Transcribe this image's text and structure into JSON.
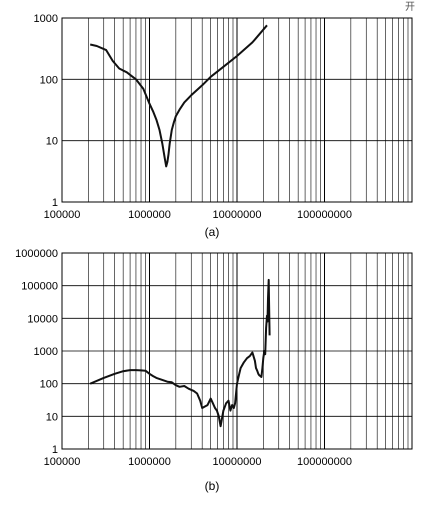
{
  "corner_text": "开",
  "chart_data": [
    {
      "type": "line",
      "panel_label": "(a)",
      "title": "",
      "xlabel": "",
      "ylabel": "",
      "xscale": "log",
      "yscale": "log",
      "xlim": [
        100000,
        1000000000
      ],
      "ylim": [
        1,
        1000
      ],
      "x_tick_labels": [
        "100000",
        "1000000",
        "10000000",
        "100000000"
      ],
      "y_tick_labels": [
        "1",
        "10",
        "100",
        "1000"
      ],
      "grid": "vertical at minor decades, horizontal at decades",
      "colors": {
        "line": "#111111",
        "grid": "#000000"
      },
      "series": [
        {
          "x": [
            210000,
            250000,
            320000,
            380000,
            450000,
            550000,
            700000,
            850000,
            1000000,
            1100000,
            1200000,
            1300000,
            1400000,
            1500000,
            1550000,
            1600000,
            1650000,
            1700000,
            1800000,
            1900000,
            2000000,
            2200000,
            2500000,
            3000000,
            4000000,
            5000000,
            7000000,
            10000000,
            15000000,
            22000000
          ],
          "y": [
            370,
            350,
            300,
            200,
            150,
            130,
            100,
            70,
            40,
            30,
            22,
            15,
            9,
            5,
            3.8,
            4.5,
            6,
            9,
            15,
            20,
            25,
            32,
            42,
            55,
            80,
            110,
            160,
            240,
            400,
            760
          ]
        }
      ]
    },
    {
      "type": "line",
      "panel_label": "(b)",
      "title": "",
      "xlabel": "",
      "ylabel": "",
      "xscale": "log",
      "yscale": "log",
      "xlim": [
        100000,
        1000000000
      ],
      "ylim": [
        1,
        1000000
      ],
      "x_tick_labels": [
        "100000",
        "1000000",
        "10000000",
        "100000000"
      ],
      "y_tick_labels": [
        "1",
        "10",
        "100",
        "1000",
        "10000",
        "100000",
        "1000000"
      ],
      "grid": "vertical at minor decades, horizontal at decades",
      "colors": {
        "line": "#111111",
        "grid": "#000000"
      },
      "series": [
        {
          "x": [
            210000,
            300000,
            400000,
            500000,
            600000,
            700000,
            800000,
            900000,
            1000000,
            1100000,
            1200000,
            1400000,
            1600000,
            1800000,
            2000000,
            2200000,
            2500000,
            2800000,
            3200000,
            3500000,
            3800000,
            4000000,
            4300000,
            4600000,
            5000000,
            5300000,
            5600000,
            5900000,
            6200000,
            6500000,
            7000000,
            7500000,
            8000000,
            8400000,
            8800000,
            9200000,
            9500000,
            10000000,
            10500000,
            11000000,
            12000000,
            13000000,
            14000000,
            15000000,
            16000000,
            16500000,
            17000000,
            17500000,
            18000000,
            18500000,
            19000000,
            19500000,
            20000000,
            20500000,
            21000000,
            21500000,
            22000000,
            22300000,
            22600000,
            23000000,
            23300000,
            23600000
          ],
          "y": [
            100,
            150,
            200,
            240,
            260,
            260,
            255,
            250,
            200,
            170,
            150,
            130,
            115,
            110,
            90,
            80,
            85,
            70,
            60,
            50,
            30,
            18,
            20,
            22,
            35,
            25,
            18,
            15,
            10,
            5,
            15,
            25,
            30,
            15,
            22,
            18,
            25,
            100,
            180,
            300,
            450,
            600,
            700,
            900,
            500,
            300,
            250,
            200,
            180,
            170,
            160,
            300,
            600,
            1000,
            800,
            5000,
            12000,
            8000,
            40000,
            150000,
            25000,
            3000
          ]
        }
      ]
    }
  ]
}
